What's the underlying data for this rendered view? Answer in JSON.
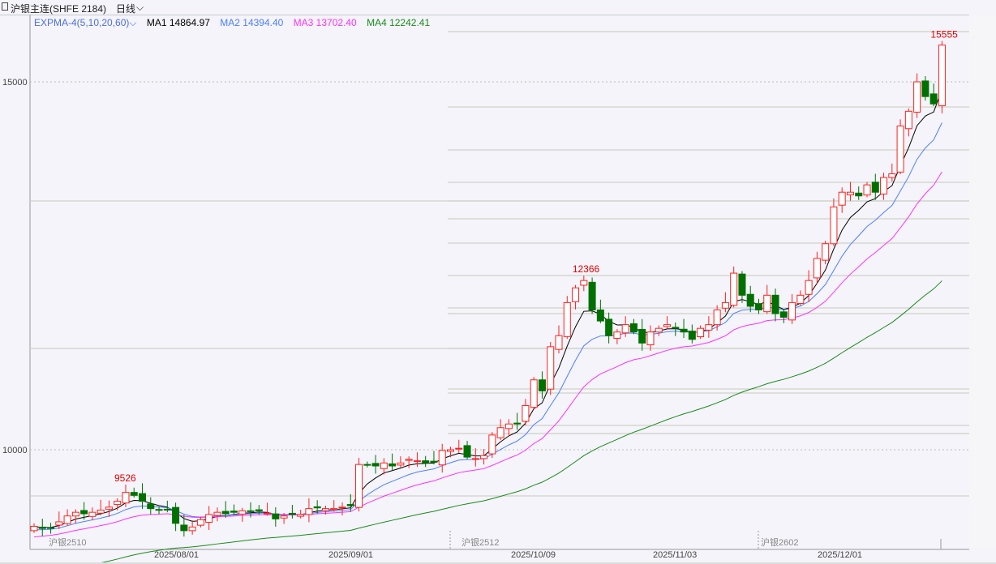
{
  "header": {
    "title": "沪银主连(SHFE 2184)",
    "period": "日线"
  },
  "indicator": {
    "name": "EXPMA-4(5,10,20,60)",
    "ma1": "MA1 14864.97",
    "ma2": "MA2 14394.40",
    "ma3": "MA3 13702.40",
    "ma4": "MA4 12242.41"
  },
  "colors": {
    "up": "#ff2020",
    "down": "#007000",
    "ma1": "#000000",
    "ma2": "#4d7fff",
    "ma3": "#ff30ff",
    "ma4": "#1a8a1a"
  },
  "chart_data": {
    "type": "candlestick",
    "yticks": [
      15000,
      10000
    ],
    "ylim": [
      8300,
      15900
    ],
    "xlabels": [
      "2025/08/01",
      "2025/09/01",
      "2025/10/09",
      "2025/11/03",
      "2025/12/01"
    ],
    "contract_labels": [
      "沪银2510",
      "沪银2512",
      "沪银2602"
    ],
    "annotations": {
      "max_labels": [
        "9526",
        "12366",
        "15555"
      ]
    },
    "closes": [
      8960,
      8930,
      8940,
      9020,
      9100,
      9150,
      9130,
      9150,
      9180,
      9220,
      9300,
      9420,
      9380,
      9300,
      9200,
      9180,
      9180,
      9000,
      8900,
      8950,
      9050,
      9120,
      9150,
      9130,
      9150,
      9170,
      9160,
      9170,
      9140,
      9060,
      9100,
      9120,
      9120,
      9200,
      9210,
      9200,
      9200,
      9220,
      9240,
      9800,
      9790,
      9780,
      9820,
      9780,
      9820,
      9870,
      9850,
      9820,
      9830,
      9990,
      10000,
      10020,
      9900,
      9880,
      9920,
      10200,
      10300,
      10350,
      10350,
      10600,
      10950,
      10800,
      11400,
      11550,
      12000,
      12200,
      12300,
      11900,
      11750,
      11550,
      11600,
      11700,
      11600,
      11450,
      11600,
      11650,
      11700,
      11650,
      11600,
      11500,
      11650,
      11700,
      11900,
      12000,
      12400,
      12100,
      11950,
      11900,
      12100,
      11850,
      11800,
      12000,
      12100,
      12300,
      12600,
      12800,
      13300,
      13500,
      13500,
      13450,
      13600,
      13500,
      13700,
      13750,
      14400,
      14600,
      15000,
      14800,
      14700,
      15500
    ],
    "max_points": [
      {
        "index": 11,
        "value": 9526
      },
      {
        "index": 66,
        "value": 12366
      },
      {
        "index": 109,
        "value": 15555
      }
    ],
    "ema_seed": [
      8950,
      8900,
      8800,
      8250
    ],
    "ema_periods": [
      5,
      10,
      20,
      60
    ]
  }
}
